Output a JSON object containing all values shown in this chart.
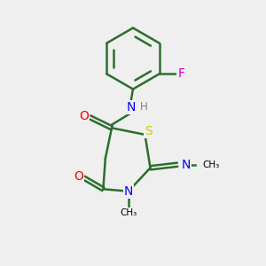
{
  "bg_color": "#efefef",
  "bond_color": "#2d6e2d",
  "line_width": 1.8,
  "atom_colors": {
    "O": "#ff0000",
    "N": "#0000ff",
    "S": "#cccc00",
    "F": "#cc00cc",
    "C": "#000000",
    "H": "#808080"
  },
  "font_size": 9,
  "figsize": [
    3.0,
    3.0
  ],
  "dpi": 100
}
